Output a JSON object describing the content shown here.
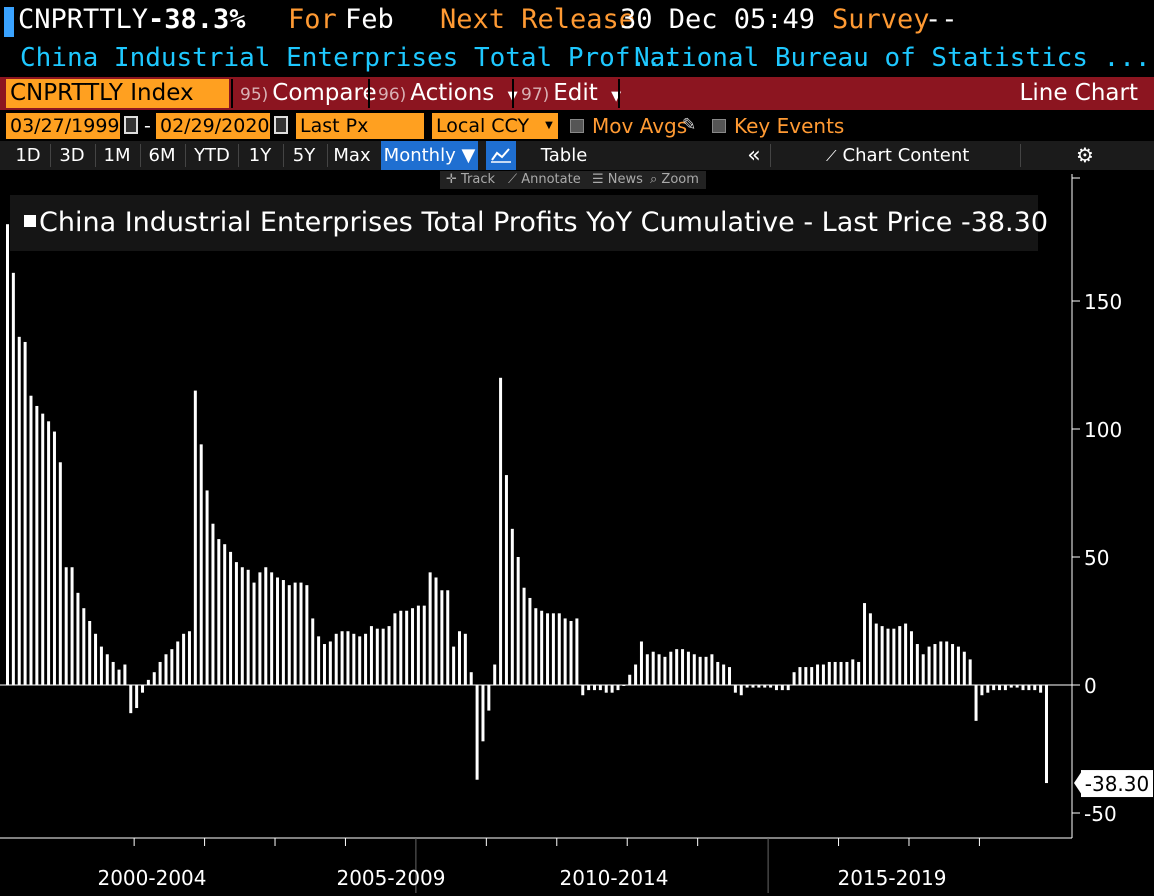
{
  "header": {
    "ticker": "CNPRTTLY",
    "last_value": "-38.3%",
    "for_label": "For",
    "for_period": "Feb",
    "next_release_label": "Next Release",
    "next_release_value": "30 Dec 05:49",
    "survey_label": "Survey",
    "survey_value": "--",
    "description": "China Industrial Enterprises Total Prof...",
    "source": "National Bureau of Statistics ..."
  },
  "toolbar": {
    "security": "CNPRTTLY Index",
    "compare_num": "95)",
    "compare_label": "Compare",
    "actions_num": "96)",
    "actions_label": "Actions",
    "edit_num": "97)",
    "edit_label": "Edit",
    "chart_type": "Line Chart",
    "start_date": "03/27/1999",
    "date_sep": "-",
    "end_date": "02/29/2020",
    "field": "Last Px",
    "currency": "Local CCY",
    "mov_avgs": "Mov Avgs",
    "key_events": "Key Events"
  },
  "ranges": {
    "buttons": [
      "1D",
      "3D",
      "1M",
      "6M",
      "YTD",
      "1Y",
      "5Y",
      "Max"
    ],
    "frequency": "Monthly ▼",
    "table": "Table",
    "chart_content": "Chart Content"
  },
  "tools": {
    "track": "Track",
    "annotate": "Annotate",
    "news": "News",
    "zoom": "Zoom"
  },
  "accent_colors": {
    "orange": "#ffa020",
    "red_bar": "#8c1520",
    "cyan": "#1ec8ff",
    "selected_blue": "#1f6fd1"
  },
  "chart_data": {
    "type": "bar",
    "title": "China Industrial Enterprises Total Profits YoY Cumulative - Last Price -38.30",
    "ylim": [
      -55,
      185
    ],
    "yticks": [
      "150",
      "100",
      "50",
      "0",
      "-50"
    ],
    "ytick_values": [
      150,
      100,
      50,
      0,
      -50
    ],
    "xlabels": [
      "2000-2004",
      "2005-2009",
      "2010-2014",
      "2015-2019"
    ],
    "last_label": "-38.30",
    "last_value": -38.3,
    "values": [
      180,
      161,
      136,
      134,
      113,
      109,
      106,
      103,
      99,
      87,
      46,
      46,
      36,
      30,
      25,
      20,
      15,
      12,
      9,
      6,
      8,
      -11,
      -9,
      -3,
      2,
      5,
      9,
      12,
      14,
      17,
      20,
      21,
      115,
      94,
      76,
      63,
      57,
      55,
      52,
      48,
      46,
      45,
      40,
      44,
      46,
      44,
      42,
      41,
      39,
      40,
      40,
      39,
      26,
      19,
      16,
      17,
      20,
      21,
      21,
      20,
      19,
      20,
      23,
      22,
      22,
      23,
      28,
      29,
      29,
      30,
      31,
      31,
      44,
      42,
      37,
      37,
      15,
      21,
      20,
      5,
      -37,
      -22,
      -10,
      8,
      120,
      82,
      61,
      50,
      38,
      34,
      30,
      29,
      28,
      28,
      28,
      26,
      25,
      26,
      -4,
      -2,
      -2,
      -2,
      -3,
      -3,
      -2,
      0,
      4,
      8,
      17,
      12,
      13,
      12,
      11,
      13,
      14,
      14,
      13,
      12,
      11,
      11,
      12,
      9,
      8,
      7,
      -3,
      -4,
      -1,
      -1,
      -1,
      -1,
      -1,
      -2,
      -2,
      -2,
      5,
      7,
      7,
      7,
      8,
      8,
      9,
      9,
      9,
      9,
      10,
      9,
      32,
      28,
      24,
      23,
      22,
      22,
      23,
      24,
      21,
      16,
      12,
      15,
      16,
      17,
      17,
      16,
      15,
      13,
      10,
      -14,
      -4,
      -3,
      -2,
      -2,
      -2,
      -1,
      -1,
      -2,
      -2,
      -2,
      -3,
      -38.3
    ]
  }
}
